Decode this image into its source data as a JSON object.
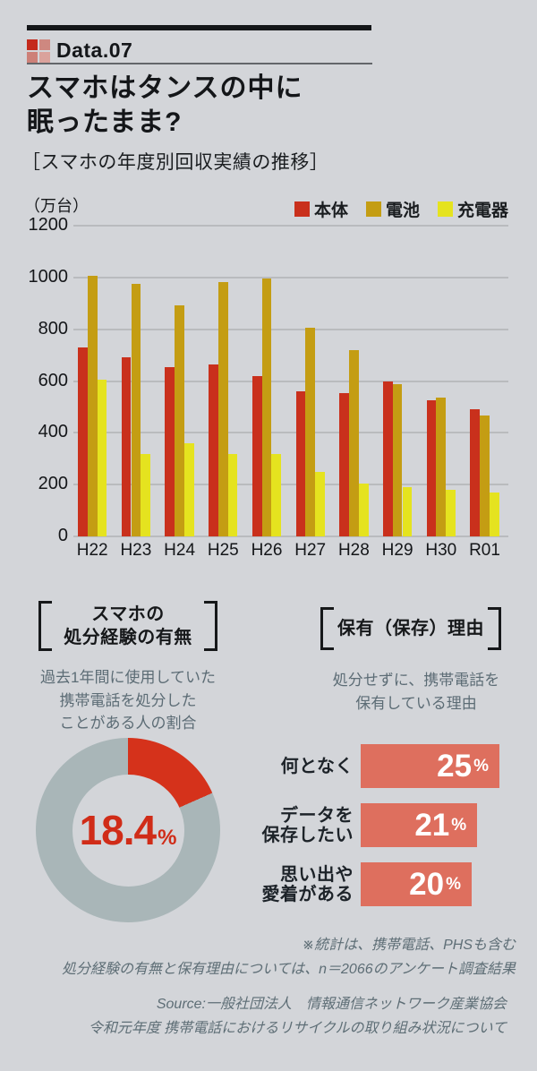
{
  "page": {
    "background": "#d3d5d9"
  },
  "header": {
    "badge": "Data.07",
    "title_line1": "スマホはタンスの中に",
    "title_line2": "眠ったまま?",
    "subtitle": "［スマホの年度別回収実績の推移］"
  },
  "colors": {
    "body_red": "#c9301c",
    "battery_gold": "#c49d13",
    "charger_yellow": "#e5e31f",
    "donut_red": "#d5321b",
    "donut_gray": "#a9b6b8",
    "salmon_bar": "#de6f5e",
    "note_gray": "#5e6e76",
    "gridline": "#b9bbbe"
  },
  "chart_data": [
    {
      "type": "bar",
      "title": "スマホの年度別回収実績の推移",
      "unit_label": "（万台）",
      "categories": [
        "H22",
        "H23",
        "H24",
        "H25",
        "H26",
        "H27",
        "H28",
        "H29",
        "H30",
        "R01"
      ],
      "series": [
        {
          "name": "本体",
          "color": "#c9301c",
          "values": [
            730,
            690,
            655,
            665,
            618,
            560,
            555,
            600,
            525,
            492
          ]
        },
        {
          "name": "電池",
          "color": "#c49d13",
          "values": [
            1007,
            976,
            892,
            983,
            995,
            806,
            720,
            587,
            535,
            466
          ]
        },
        {
          "name": "充電器",
          "color": "#e5e31f",
          "values": [
            606,
            318,
            358,
            317,
            317,
            248,
            205,
            190,
            180,
            170
          ]
        }
      ],
      "ylim": [
        0,
        1200
      ],
      "yticks": [
        0,
        200,
        400,
        600,
        800,
        1000,
        1200
      ],
      "grid": true,
      "legend_position": "top-right"
    },
    {
      "type": "pie",
      "title_line1": "スマホの",
      "title_line2": "処分経験の有無",
      "description_lines": [
        "過去1年間に使用していた",
        "携帯電話を処分した",
        "ことがある人の割合"
      ],
      "slices": [
        {
          "label": "処分したことがある",
          "value": 18.4,
          "color": "#d5321b"
        },
        {
          "label": "その他",
          "value": 81.6,
          "color": "#a9b6b8"
        }
      ],
      "center_value": "18.4",
      "center_unit": "%"
    },
    {
      "type": "bar",
      "title": "保有（保存）理由",
      "description_lines": [
        "処分せずに、携帯電話を",
        "保有している理由"
      ],
      "categories": [
        "何となく",
        "データを保存したい",
        "思い出や愛着がある"
      ],
      "values": [
        25,
        21,
        20
      ],
      "unit": "%",
      "bar_color": "#de6f5e",
      "rows": [
        {
          "label_lines": [
            "何となく"
          ],
          "value": "25",
          "unit": "%"
        },
        {
          "label_lines": [
            "データを",
            "保存したい"
          ],
          "value": "21",
          "unit": "%"
        },
        {
          "label_lines": [
            "思い出や",
            "愛着がある"
          ],
          "value": "20",
          "unit": "%"
        }
      ]
    }
  ],
  "footnotes": {
    "line1": "※統計は、携帯電話、PHSも含む",
    "line2": "処分経験の有無と保有理由については、n＝2066のアンケート調査結果"
  },
  "source": {
    "line1": "Source:一般社団法人　情報通信ネットワーク産業協会",
    "line2": "令和元年度 携帯電話におけるリサイクルの取り組み状況について"
  }
}
